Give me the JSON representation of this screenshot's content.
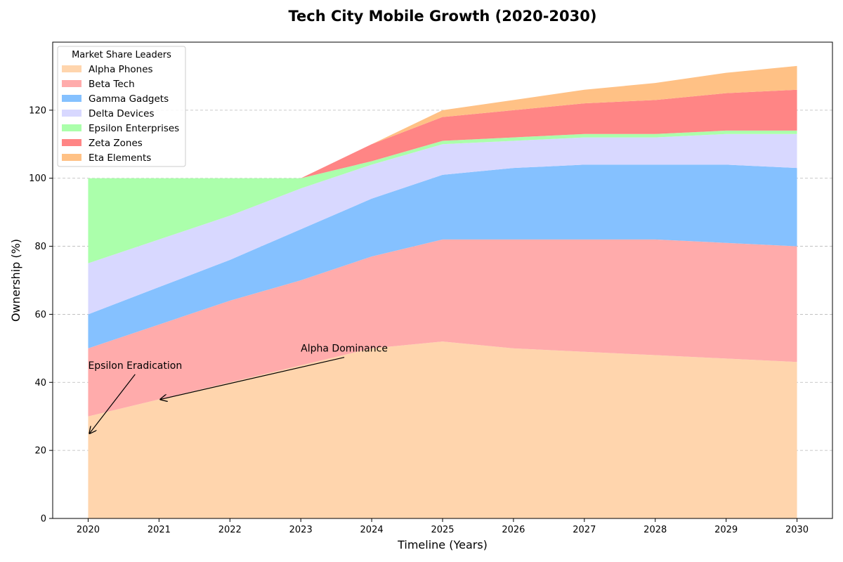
{
  "chart_data": {
    "type": "area",
    "title": "Tech City Mobile Growth (2020-2030)",
    "xlabel": "Timeline (Years)",
    "ylabel": "Ownership (%)",
    "x": [
      2020,
      2021,
      2022,
      2023,
      2024,
      2025,
      2026,
      2027,
      2028,
      2029,
      2030
    ],
    "xlim": [
      2019.5,
      2030.5
    ],
    "ylim": [
      0,
      140
    ],
    "yticks": [
      0,
      20,
      40,
      60,
      80,
      100,
      120
    ],
    "grid": "y-dashed",
    "legend_title": "Market Share Leaders",
    "legend_position": "top-left",
    "series": [
      {
        "name": "Alpha Phones",
        "color": "#ffd5ad",
        "values": [
          30,
          35,
          40,
          45,
          50,
          52,
          50,
          49,
          48,
          47,
          46
        ]
      },
      {
        "name": "Beta Tech",
        "color": "#ffabab",
        "values": [
          20,
          22,
          24,
          25,
          27,
          30,
          32,
          33,
          34,
          34,
          34
        ]
      },
      {
        "name": "Gamma Gadgets",
        "color": "#85c1ff",
        "values": [
          10,
          11,
          12,
          15,
          17,
          19,
          21,
          22,
          22,
          23,
          23
        ]
      },
      {
        "name": "Delta Devices",
        "color": "#d8d8ff",
        "values": [
          15,
          14,
          13,
          12,
          10,
          9,
          8,
          8,
          8,
          9,
          10
        ]
      },
      {
        "name": "Epsilon Enterprises",
        "color": "#abffab",
        "values": [
          25,
          18,
          11,
          3,
          1,
          1,
          1,
          1,
          1,
          1,
          1
        ]
      },
      {
        "name": "Zeta Zones",
        "color": "#ff8585",
        "values": [
          0,
          0,
          0,
          0,
          5,
          7,
          8,
          9,
          10,
          11,
          12
        ]
      },
      {
        "name": "Eta Elements",
        "color": "#ffc185",
        "values": [
          0,
          0,
          0,
          0,
          0,
          2,
          3,
          4,
          5,
          6,
          7
        ]
      }
    ],
    "annotations": [
      {
        "text": "Epsilon Eradication",
        "target": [
          2020,
          25
        ],
        "text_at": [
          2020,
          44
        ]
      },
      {
        "text": "Alpha Dominance",
        "target": [
          2021,
          35
        ],
        "text_at": [
          2023,
          49
        ]
      }
    ]
  }
}
